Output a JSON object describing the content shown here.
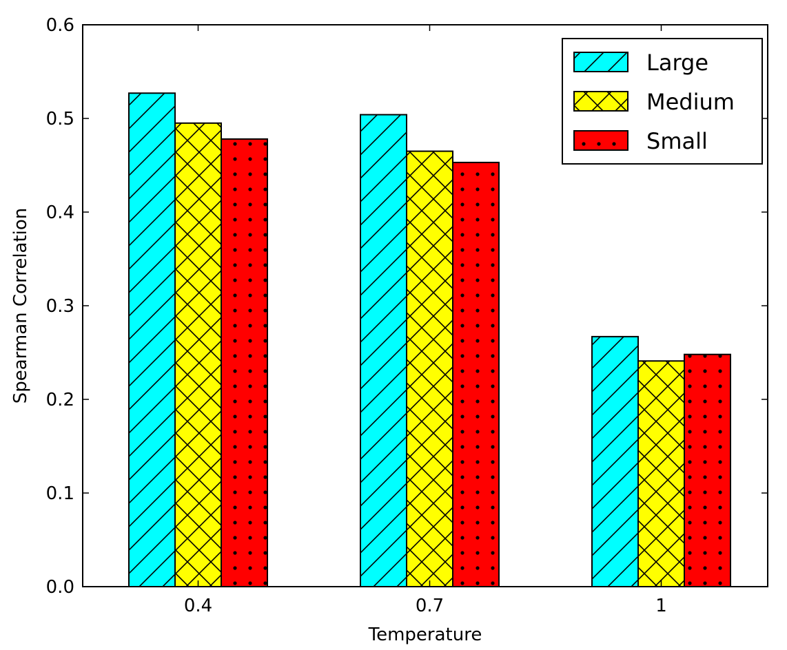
{
  "chart_data": {
    "type": "bar",
    "xlabel": "Temperature",
    "ylabel": "Spearman Correlation",
    "categories": [
      "0.4",
      "0.7",
      "1"
    ],
    "ylim": [
      0.0,
      0.6
    ],
    "yticks": [
      "0.0",
      "0.1",
      "0.2",
      "0.3",
      "0.4",
      "0.5",
      "0.6"
    ],
    "grid": false,
    "legend_position": "top-right",
    "series": [
      {
        "name": "Large",
        "values": [
          0.527,
          0.504,
          0.267
        ],
        "color": "#00ffff",
        "hatch": "diagonal"
      },
      {
        "name": "Medium",
        "values": [
          0.495,
          0.465,
          0.241
        ],
        "color": "#ffff00",
        "hatch": "cross-hatch"
      },
      {
        "name": "Small",
        "values": [
          0.478,
          0.453,
          0.248
        ],
        "color": "#ff0000",
        "hatch": "dots"
      }
    ]
  }
}
